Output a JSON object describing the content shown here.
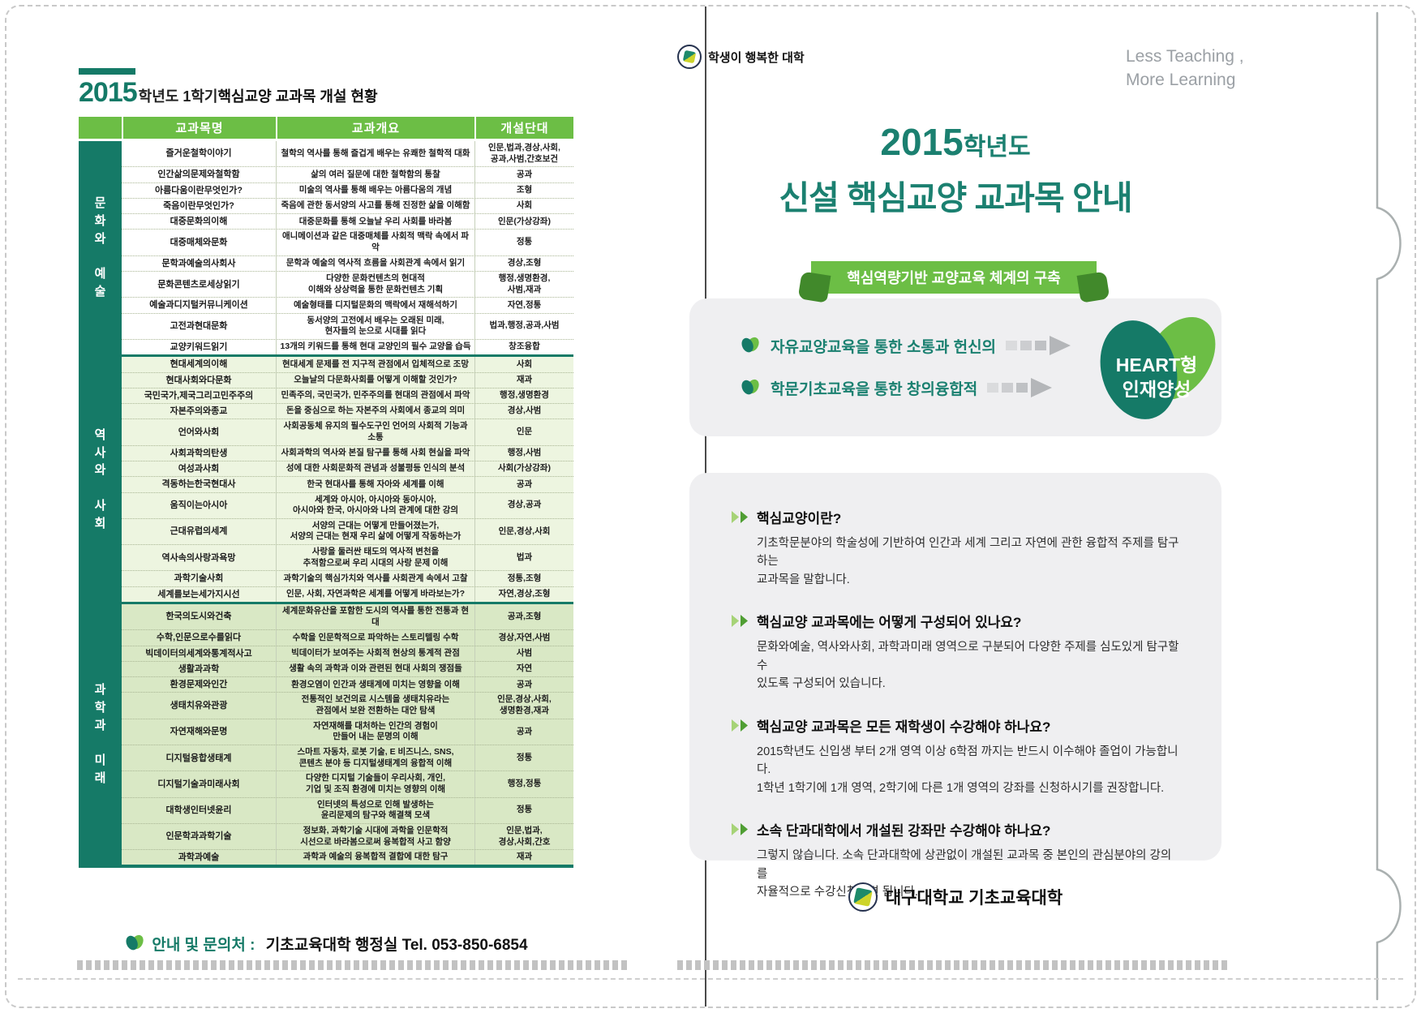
{
  "colors": {
    "teal": "#157a67",
    "green": "#6cbe45",
    "row_light_green": "#edf5e0",
    "row_medium_green": "#d9e8c5",
    "gray_box": "#efeff1",
    "tagline_gray": "#9ba0a5"
  },
  "left_page": {
    "title": {
      "year": "2015",
      "prefix": "학년도 1학기 ",
      "emphasis": "핵심교양 교과목 개설 현황"
    },
    "table": {
      "headers": [
        "교과목명",
        "교과개요",
        "개설단대"
      ],
      "groups": [
        {
          "label": "문화와 예술",
          "rows": [
            {
              "name": "즐거운철학이야기",
              "overview": "철학의 역사를 통해 즐겁게 배우는 유쾌한 철학적 대화",
              "colleges": "인문,법과,경상,사회,\n공과,사범,간호보건"
            },
            {
              "name": "인간삶의문제와철학함",
              "overview": "삶의 여러 질문에 대한 철학함의 통찰",
              "colleges": "공과"
            },
            {
              "name": "아름다움이란무엇인가?",
              "overview": "미술의 역사를 통해 배우는 아름다움의 개념",
              "colleges": "조형"
            },
            {
              "name": "죽음이란무엇인가?",
              "overview": "죽음에 관한 동서양의 사고를 통해 진정한 삶을 이해함",
              "colleges": "사회"
            },
            {
              "name": "대중문화의이해",
              "overview": "대중문화를 통해 오늘날 우리 사회를 바라봄",
              "colleges": "인문(가상강좌)"
            },
            {
              "name": "대중매체와문화",
              "overview": "애니메이션과 같은 대중매체를 사회적 맥락 속에서 파악",
              "colleges": "정통"
            },
            {
              "name": "문학과예술의사회사",
              "overview": "문학과 예술의 역사적 흐름을 사회관계 속에서 읽기",
              "colleges": "경상,조형"
            },
            {
              "name": "문화콘텐츠로세상읽기",
              "overview": "다양한 문화컨텐츠의 현대적\n이해와 상상력을 통한 문화컨텐츠 기획",
              "colleges": "행정,생명환경,\n사범,재과"
            },
            {
              "name": "예술과디지털커뮤니케이션",
              "overview": "예술형태를 디지털문화의 맥락에서 재해석하기",
              "colleges": "자연,정통"
            },
            {
              "name": "고전과현대문화",
              "overview": "동서양의 고전에서 배우는 오래된 미래,\n현자들의 눈으로 시대를 읽다",
              "colleges": "법과,행정,공과,사범"
            },
            {
              "name": "교양키워드읽기",
              "overview": "13개의 키워드를 통해 현대 교양인의 필수 교양을 습득",
              "colleges": "창조융합"
            }
          ]
        },
        {
          "label": "역사와 사회",
          "rows": [
            {
              "name": "현대세계의이해",
              "overview": "현대세계 문제를 전 지구적 관점에서 입체적으로 조망",
              "colleges": "사회"
            },
            {
              "name": "현대사회와다문화",
              "overview": "오늘날의 다문화사회를 어떻게 이해할 것인가?",
              "colleges": "재과"
            },
            {
              "name": "국민국가,제국그리고민주주의",
              "overview": "민족주의, 국민국가, 민주주의를 현대의 관점에서 파악",
              "colleges": "행정,생명환경"
            },
            {
              "name": "자본주의와종교",
              "overview": "돈을 중심으로 하는 자본주의 사회에서 종교의 의미",
              "colleges": "경상,사범"
            },
            {
              "name": "언어와사회",
              "overview": "사회공동체 유지의 필수도구인 언어의 사회적 기능과 소통",
              "colleges": "인문"
            },
            {
              "name": "사회과학의탄생",
              "overview": "사회과학의 역사와 본질 탐구를 통해 사회 현실을 파악",
              "colleges": "행정,사범"
            },
            {
              "name": "여성과사회",
              "overview": "성에 대한 사회문화적 관념과 성불평등 인식의 분석",
              "colleges": "사회(가상강좌)"
            },
            {
              "name": "격동하는한국현대사",
              "overview": "한국 현대사를 통해 자아와 세계를 이해",
              "colleges": "공과"
            },
            {
              "name": "움직이는아시아",
              "overview": "세계와 아시아, 아시아와 동아시아,\n아시아와 한국, 아시아와 나의 관계에 대한 강의",
              "colleges": "경상,공과"
            },
            {
              "name": "근대유럽의세계",
              "overview": "서양의 근대는 어떻게 만들어졌는가,\n서양의 근대는 현재 우리 삶에 어떻게 작동하는가",
              "colleges": "인문,경상,사회"
            },
            {
              "name": "역사속의사랑과욕망",
              "overview": "사랑을 둘러싼 태도의 역사적 변천을\n추적함으로써 우리 시대의 사랑 문제 이해",
              "colleges": "법과"
            },
            {
              "name": "과학기술사회",
              "overview": "과학기술의 핵심가치와 역사를 사회관계 속에서 고찰",
              "colleges": "정통,조형"
            },
            {
              "name": "세계를보는세가지시선",
              "overview": "인문, 사회, 자연과학은 세계를 어떻게 바라보는가?",
              "colleges": "자연,경상,조형"
            }
          ]
        },
        {
          "label": "과학과 미래",
          "rows": [
            {
              "name": "한국의도시와건축",
              "overview": "세계문화유산을 포함한 도시의 역사를 통한 전통과 현대",
              "colleges": "공과,조형"
            },
            {
              "name": "수학,인문으로수를읽다",
              "overview": "수학을 인문학적으로 파악하는 스토리텔링 수학",
              "colleges": "경상,자연,사범"
            },
            {
              "name": "빅데이터의세계와통계적사고",
              "overview": "빅데이터가 보여주는 사회적 현상의 통계적 관점",
              "colleges": "사범"
            },
            {
              "name": "생활과과학",
              "overview": "생활 속의 과학과 이와 관련된 현대 사회의 쟁점들",
              "colleges": "자연"
            },
            {
              "name": "환경문제와인간",
              "overview": "환경오염이 인간과 생태계에 미치는 영향을 이해",
              "colleges": "공과"
            },
            {
              "name": "생태치유와관광",
              "overview": "전통적인 보건의료 시스템을 생태치유라는\n관점에서 보완 전환하는 대안 탐색",
              "colleges": "인문,경상,사회,\n생명환경,재과"
            },
            {
              "name": "자연재해와문명",
              "overview": "자연재해를 대처하는 인간의 경험이\n만들어 내는 문명의 이해",
              "colleges": "공과"
            },
            {
              "name": "디지털융합생태계",
              "overview": "스마트 자동차, 로봇 기술, E 비즈니스, SNS,\n콘텐츠 분야 등 디지털생태계의 융합적 이해",
              "colleges": "정통"
            },
            {
              "name": "디지털기술과미래사회",
              "overview": "다양한 디지털 기술들이 우리사회, 개인,\n기업 및 조직 환경에 미치는 영향의 이해",
              "colleges": "행정,정통"
            },
            {
              "name": "대학생인터넷윤리",
              "overview": "인터넷의 특성으로 인해 발생하는\n윤리문제의 탐구와 해결책 모색",
              "colleges": "정통"
            },
            {
              "name": "인문학과과학기술",
              "overview": "정보화, 과학기술 시대에 과학을 인문학적\n시선으로 바라봄으로써 융복합적 사고 함양",
              "colleges": "인문,법과,\n경상,사회,간호"
            },
            {
              "name": "과학과예술",
              "overview": "과학과 예술의 융복합적 결합에 대한 탐구",
              "colleges": "재과"
            }
          ]
        }
      ]
    },
    "contact": {
      "label": "안내 및 문의처 : ",
      "value": "기초교육대학 행정실 Tel. 053-850-6854"
    }
  },
  "right_page": {
    "brand": {
      "slogan": "학생이 행복한 대학",
      "tagline1": "Less Teaching ,",
      "tagline2": "More Learning"
    },
    "title": {
      "year": "2015",
      "year_suffix": "학년도",
      "line2": "신설 핵심교양 교과목 안내"
    },
    "ribbon": "핵심역량기반 교양교육 체계의 구축",
    "heart_section": {
      "items": [
        "자유교양교육을 통한 소통과 헌신의",
        "학문기초교육을 통한 창의융합적"
      ],
      "heart_line1": "HEART형",
      "heart_line2": "인재양성"
    },
    "faq": [
      {
        "q": "핵심교양이란?",
        "a": "기초학문분야의 학술성에 기반하여 인간과 세계 그리고 자연에 관한 융합적 주제를 탐구하는\n교과목을 말합니다."
      },
      {
        "q": "핵심교양 교과목에는 어떻게 구성되어 있나요?",
        "a": "문화와예술, 역사와사회, 과학과미래 영역으로 구분되어 다양한 주제를 심도있게 탐구할 수\n있도록 구성되어 있습니다."
      },
      {
        "q": "핵심교양 교과목은 모든 재학생이 수강해야 하나요?",
        "a": "2015학년도 신입생 부터 2개 영역 이상 6학점 까지는 반드시 이수해야 졸업이 가능합니다.\n1학년 1학기에 1개 영역, 2학기에 다른 1개 영역의 강좌를 신청하시기를 권장합니다."
      },
      {
        "q": "소속 단과대학에서 개설된 강좌만 수강해야 하나요?",
        "a": "그렇지 않습니다. 소속 단과대학에 상관없이 개설된 교과목 중 본인의 관심분야의 강의를\n자율적으로 수강신청하면 됩니다."
      }
    ],
    "footer": "대구대학교 기초교육대학"
  }
}
